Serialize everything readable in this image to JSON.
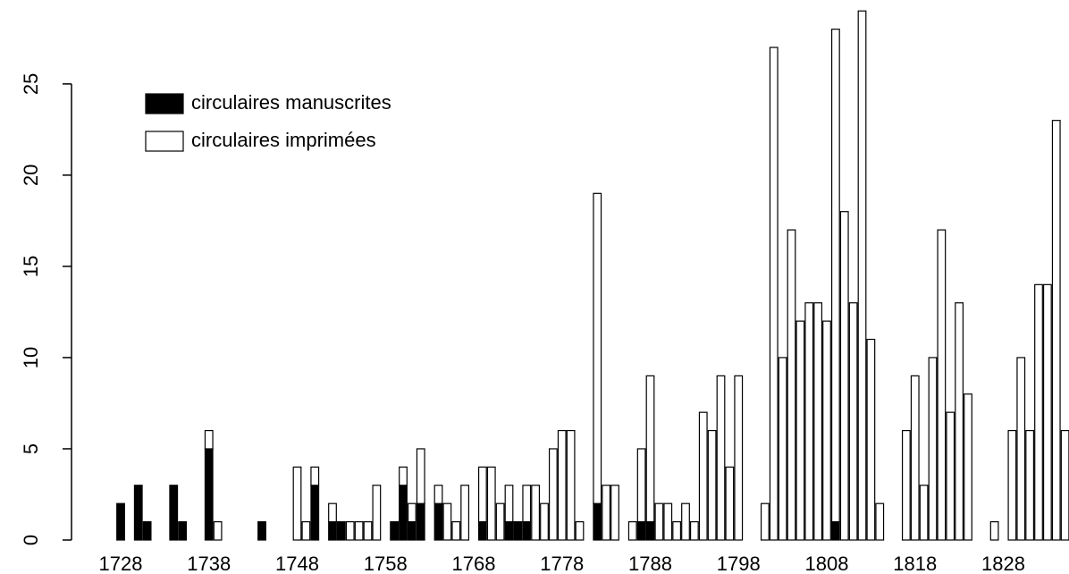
{
  "chart_data": {
    "type": "stacked_bar",
    "categories": [
      "1728",
      null,
      null,
      null,
      null,
      null,
      null,
      null,
      null,
      null,
      "1738",
      null,
      null,
      null,
      null,
      null,
      null,
      null,
      null,
      null,
      "1748",
      null,
      null,
      null,
      null,
      null,
      null,
      null,
      null,
      null,
      "1758",
      null,
      null,
      null,
      null,
      null,
      null,
      null,
      null,
      null,
      "1768",
      null,
      null,
      null,
      null,
      null,
      null,
      null,
      null,
      null,
      "1778",
      null,
      null,
      null,
      null,
      null,
      null,
      null,
      null,
      null,
      "1788",
      null,
      null,
      null,
      null,
      null,
      null,
      null,
      null,
      null,
      "1798",
      null,
      null,
      null,
      null,
      null,
      null,
      null,
      null,
      null,
      "1808",
      null,
      null,
      null,
      null,
      null,
      null,
      null,
      null,
      null,
      "1818",
      null,
      null,
      null,
      null,
      null,
      null,
      null,
      null,
      null,
      "1828",
      null,
      null,
      null,
      null,
      null,
      null,
      null
    ],
    "series": [
      {
        "name": "circulaires manuscrites",
        "color": "#000000",
        "values": [
          2,
          0,
          3,
          1,
          0,
          0,
          3,
          1,
          0,
          0,
          5,
          0,
          0,
          0,
          0,
          0,
          1,
          0,
          0,
          0,
          0,
          0,
          3,
          0,
          1,
          1,
          0,
          0,
          0,
          0,
          0,
          1,
          3,
          1,
          2,
          0,
          2,
          0,
          0,
          0,
          0,
          1,
          0,
          0,
          1,
          1,
          1,
          0,
          0,
          0,
          0,
          0,
          0,
          0,
          2,
          0,
          0,
          0,
          0,
          1,
          1,
          0,
          0,
          0,
          0,
          0,
          0,
          0,
          0,
          0,
          0,
          0,
          0,
          0,
          0,
          0,
          0,
          0,
          0,
          0,
          0,
          1,
          0,
          0,
          0,
          0,
          0,
          0,
          0,
          0,
          0,
          0,
          0,
          0,
          0,
          0,
          0,
          0,
          0,
          0,
          0,
          0,
          0,
          0,
          0,
          0,
          0,
          0
        ]
      },
      {
        "name": "circulaires imprimées",
        "color": "#ffffff",
        "values": [
          0,
          0,
          0,
          0,
          0,
          0,
          0,
          0,
          0,
          0,
          1,
          1,
          0,
          0,
          0,
          0,
          0,
          0,
          0,
          0,
          4,
          1,
          1,
          0,
          1,
          0,
          1,
          1,
          1,
          3,
          0,
          0,
          1,
          1,
          3,
          0,
          1,
          2,
          1,
          3,
          0,
          3,
          4,
          2,
          2,
          0,
          2,
          3,
          2,
          5,
          6,
          6,
          1,
          0,
          17,
          3,
          3,
          0,
          1,
          4,
          8,
          2,
          2,
          1,
          2,
          1,
          7,
          6,
          9,
          4,
          9,
          0,
          0,
          2,
          27,
          10,
          17,
          12,
          13,
          13,
          12,
          27,
          18,
          13,
          29,
          11,
          2,
          0,
          0,
          6,
          9,
          3,
          10,
          17,
          7,
          13,
          8,
          0,
          0,
          1,
          0,
          6,
          10,
          6,
          14,
          14,
          23,
          6
        ]
      }
    ],
    "ylim": [
      0,
      29.6
    ],
    "yticks": [
      0,
      5,
      10,
      15,
      20,
      25
    ],
    "legend": "top-left"
  }
}
